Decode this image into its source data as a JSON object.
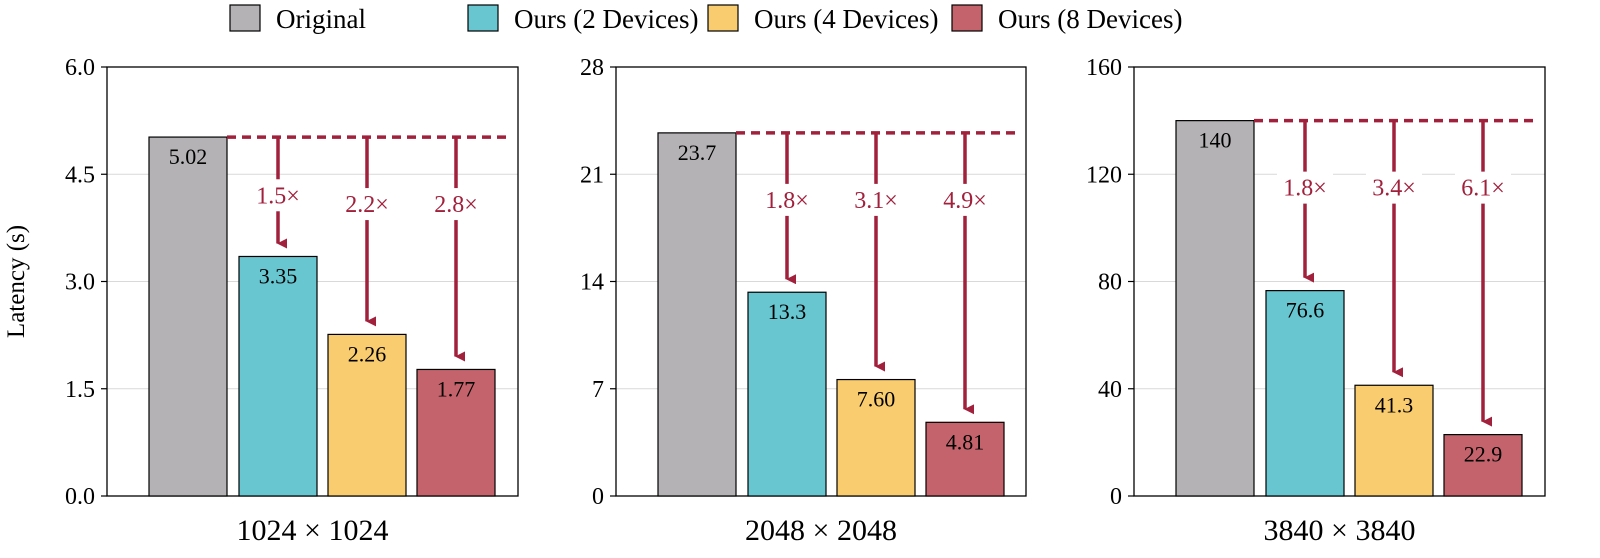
{
  "chart_data": [
    {
      "type": "bar",
      "xlabel": "1024 × 1024",
      "ylabel": "Latency (s)",
      "ylim": [
        0,
        6.0
      ],
      "yticks": [
        "0.0",
        "1.5",
        "3.0",
        "4.5",
        "6.0"
      ],
      "values": [
        5.02,
        3.35,
        2.26,
        1.77
      ],
      "value_labels": [
        "5.02",
        "3.35",
        "2.26",
        "1.77"
      ],
      "speedups": [
        "1.5×",
        "2.2×",
        "2.8×"
      ]
    },
    {
      "type": "bar",
      "xlabel": "2048 × 2048",
      "ylabel": "",
      "ylim": [
        0,
        28
      ],
      "yticks": [
        "0",
        "7",
        "14",
        "21",
        "28"
      ],
      "values": [
        23.7,
        13.3,
        7.6,
        4.81
      ],
      "value_labels": [
        "23.7",
        "13.3",
        "7.60",
        "4.81"
      ],
      "speedups": [
        "1.8×",
        "3.1×",
        "4.9×"
      ]
    },
    {
      "type": "bar",
      "xlabel": "3840 × 3840",
      "ylabel": "",
      "ylim": [
        0,
        160
      ],
      "yticks": [
        "0",
        "40",
        "80",
        "120",
        "160"
      ],
      "values": [
        140,
        76.6,
        41.3,
        22.9
      ],
      "value_labels": [
        "140",
        "76.6",
        "41.3",
        "22.9"
      ],
      "speedups": [
        "1.8×",
        "3.4×",
        "6.1×"
      ]
    }
  ],
  "legend": {
    "placement": "top-center",
    "items": [
      {
        "name": "Original",
        "color": "#b4b2b5"
      },
      {
        "name": "Ours (2 Devices)",
        "color": "#68c6d1"
      },
      {
        "name": "Ours (4 Devices)",
        "color": "#f9cc6f"
      },
      {
        "name": "Ours (8 Devices)",
        "color": "#c4636c"
      }
    ]
  },
  "colors": {
    "arrow": "#a1203c",
    "grid": "#d9d9d9"
  },
  "grid": true
}
